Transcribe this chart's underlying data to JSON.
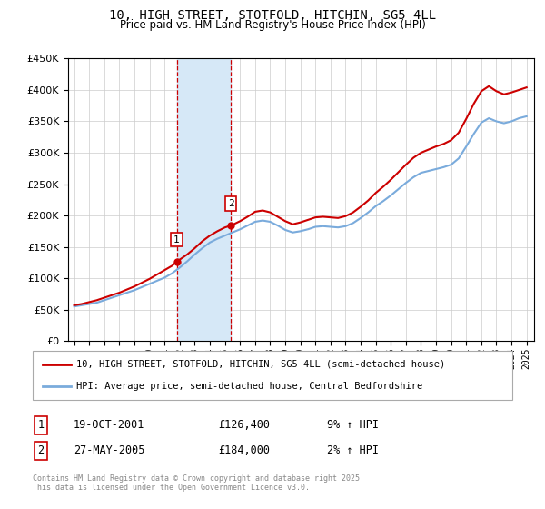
{
  "title": "10, HIGH STREET, STOTFOLD, HITCHIN, SG5 4LL",
  "subtitle": "Price paid vs. HM Land Registry's House Price Index (HPI)",
  "ylim": [
    0,
    450000
  ],
  "xlim_start": 1994.6,
  "xlim_end": 2025.5,
  "legend_line1": "10, HIGH STREET, STOTFOLD, HITCHIN, SG5 4LL (semi-detached house)",
  "legend_line2": "HPI: Average price, semi-detached house, Central Bedfordshire",
  "line1_color": "#cc0000",
  "line2_color": "#7aabdc",
  "shade_color": "#d6e8f7",
  "vline_color": "#cc0000",
  "transaction1": {
    "label": "1",
    "year": 2001.8,
    "price": 126400
  },
  "transaction2": {
    "label": "2",
    "year": 2005.4,
    "price": 184000
  },
  "transaction1_text": "19-OCT-2001",
  "transaction1_price": "£126,400",
  "transaction1_hpi": "9% ↑ HPI",
  "transaction2_text": "27-MAY-2005",
  "transaction2_price": "£184,000",
  "transaction2_hpi": "2% ↑ HPI",
  "footer": "Contains HM Land Registry data © Crown copyright and database right 2025.\nThis data is licensed under the Open Government Licence v3.0.",
  "background_color": "#ffffff",
  "grid_color": "#cccccc",
  "hpi_line_years": [
    1995.0,
    1995.5,
    1996.0,
    1996.5,
    1997.0,
    1997.5,
    1998.0,
    1998.5,
    1999.0,
    1999.5,
    2000.0,
    2000.5,
    2001.0,
    2001.5,
    2002.0,
    2002.5,
    2003.0,
    2003.5,
    2004.0,
    2004.5,
    2005.0,
    2005.5,
    2006.0,
    2006.5,
    2007.0,
    2007.5,
    2008.0,
    2008.5,
    2009.0,
    2009.5,
    2010.0,
    2010.5,
    2011.0,
    2011.5,
    2012.0,
    2012.5,
    2013.0,
    2013.5,
    2014.0,
    2014.5,
    2015.0,
    2015.5,
    2016.0,
    2016.5,
    2017.0,
    2017.5,
    2018.0,
    2018.5,
    2019.0,
    2019.5,
    2020.0,
    2020.5,
    2021.0,
    2021.5,
    2022.0,
    2022.5,
    2023.0,
    2023.5,
    2024.0,
    2024.5,
    2025.0
  ],
  "hpi_values": [
    55000,
    57000,
    59000,
    61000,
    65000,
    69000,
    73000,
    77000,
    81000,
    86000,
    91000,
    96000,
    101000,
    108000,
    117000,
    127000,
    138000,
    148000,
    157000,
    163000,
    168000,
    173000,
    178000,
    184000,
    190000,
    192000,
    190000,
    184000,
    177000,
    173000,
    175000,
    178000,
    182000,
    183000,
    182000,
    181000,
    183000,
    188000,
    196000,
    205000,
    215000,
    223000,
    232000,
    242000,
    252000,
    261000,
    268000,
    271000,
    274000,
    277000,
    281000,
    291000,
    310000,
    330000,
    348000,
    355000,
    350000,
    347000,
    350000,
    355000,
    358000
  ],
  "price_line_years": [
    1995.0,
    1995.5,
    1996.0,
    1996.5,
    1997.0,
    1997.5,
    1998.0,
    1998.5,
    1999.0,
    1999.5,
    2000.0,
    2000.5,
    2001.0,
    2001.5,
    2001.8,
    2002.5,
    2003.0,
    2003.5,
    2004.0,
    2004.5,
    2005.0,
    2005.4,
    2006.0,
    2006.5,
    2007.0,
    2007.5,
    2008.0,
    2008.5,
    2009.0,
    2009.5,
    2010.0,
    2010.5,
    2011.0,
    2011.5,
    2012.0,
    2012.5,
    2013.0,
    2013.5,
    2014.0,
    2014.5,
    2015.0,
    2015.5,
    2016.0,
    2016.5,
    2017.0,
    2017.5,
    2018.0,
    2018.5,
    2019.0,
    2019.5,
    2020.0,
    2020.5,
    2021.0,
    2021.5,
    2022.0,
    2022.5,
    2023.0,
    2023.5,
    2024.0,
    2024.5,
    2025.0
  ],
  "price_values": [
    57000,
    59000,
    62000,
    65000,
    69000,
    73000,
    77000,
    82000,
    87000,
    93000,
    99000,
    106000,
    113000,
    120000,
    126400,
    138000,
    148000,
    159000,
    168000,
    175000,
    181000,
    184000,
    191000,
    198000,
    206000,
    208000,
    205000,
    198000,
    191000,
    186000,
    189000,
    193000,
    197000,
    198000,
    197000,
    196000,
    199000,
    205000,
    214000,
    224000,
    236000,
    246000,
    257000,
    269000,
    281000,
    292000,
    300000,
    305000,
    310000,
    314000,
    320000,
    332000,
    354000,
    378000,
    398000,
    406000,
    398000,
    393000,
    396000,
    400000,
    404000
  ]
}
